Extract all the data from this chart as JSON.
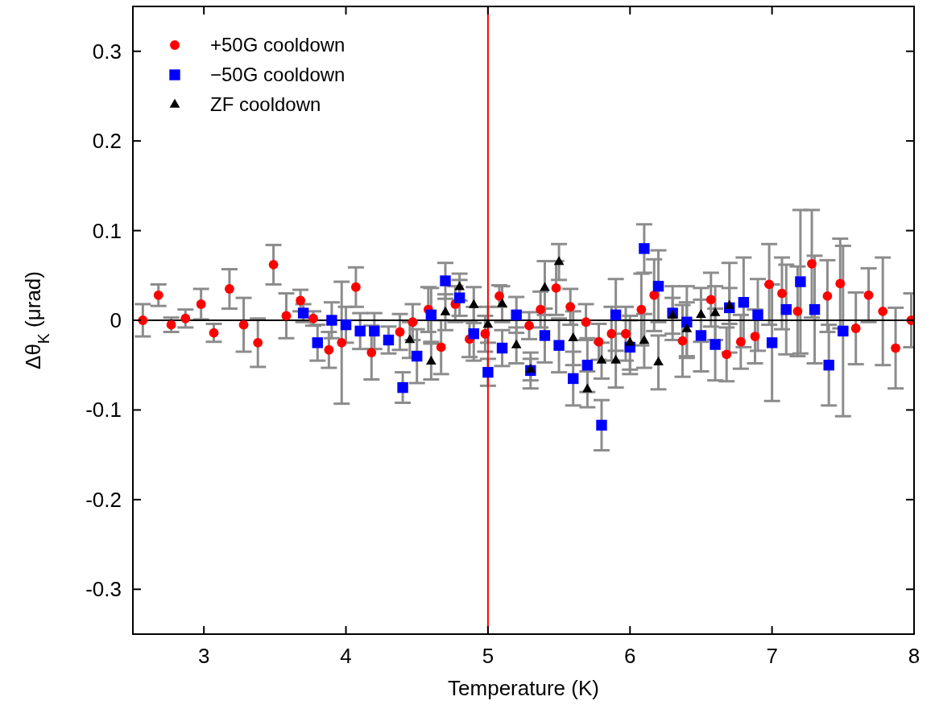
{
  "chart_data": {
    "type": "scatter",
    "xlabel": "Temperature (K)",
    "ylabel": "Δθ$_{K}$ (μrad)",
    "xlim": [
      2.5,
      8
    ],
    "ylim": [
      -0.35,
      0.35
    ],
    "xticks": [
      3,
      4,
      5,
      6,
      7,
      8
    ],
    "yticks": [
      -0.3,
      -0.2,
      -0.1,
      0,
      0.1,
      0.2,
      0.3
    ],
    "grid": false,
    "legend": "top left",
    "ref_lines": [
      {
        "axis": "x",
        "value": 5,
        "color": "#ff0000"
      },
      {
        "axis": "y",
        "value": 0,
        "color": "#000000"
      }
    ],
    "series": [
      {
        "name": "+50G cooldown",
        "color": "#ff0000",
        "marker": "circle",
        "x": [
          2.57,
          2.68,
          2.77,
          2.87,
          2.98,
          3.07,
          3.18,
          3.28,
          3.38,
          3.49,
          3.58,
          3.68,
          3.77,
          3.88,
          3.97,
          4.07,
          4.18,
          4.38,
          4.47,
          4.58,
          4.67,
          4.77,
          4.87,
          4.98,
          5.08,
          5.29,
          5.37,
          5.48,
          5.58,
          5.69,
          5.78,
          5.87,
          5.97,
          6.08,
          6.17,
          6.37,
          6.57,
          6.68,
          6.78,
          6.88,
          6.98,
          7.07,
          7.18,
          7.28,
          7.39,
          7.48,
          7.59,
          7.68,
          7.78,
          7.87,
          7.98
        ],
        "values": [
          0,
          0.028,
          -0.005,
          0.002,
          0.018,
          -0.014,
          0.035,
          -0.005,
          -0.025,
          0.062,
          0.005,
          0.022,
          0.002,
          -0.033,
          -0.025,
          0.037,
          -0.036,
          -0.013,
          -0.002,
          0.012,
          -0.03,
          0.018,
          -0.021,
          -0.015,
          0.027,
          -0.006,
          0.012,
          0.036,
          0.015,
          -0.002,
          -0.024,
          -0.015,
          -0.015,
          0.012,
          0.028,
          -0.023,
          0.023,
          -0.038,
          -0.024,
          -0.018,
          0.04,
          0.03,
          0.01,
          0.063,
          0.027,
          0.041,
          -0.009,
          0.028,
          0.01,
          -0.031,
          0
        ],
        "errors": [
          0.018,
          0.012,
          0.008,
          0.01,
          0.017,
          0.01,
          0.022,
          0.03,
          0.027,
          0.022,
          0.025,
          0.012,
          0.008,
          0.02,
          0.068,
          0.022,
          0.03,
          0.02,
          0.02,
          0.025,
          0.03,
          0.02,
          0.02,
          0.02,
          0.012,
          0.015,
          0.02,
          0.03,
          0.02,
          0.02,
          0.02,
          0.03,
          0.03,
          0.04,
          0.04,
          0.04,
          0.03,
          0.03,
          0.03,
          0.03,
          0.045,
          0.04,
          0.05,
          0.06,
          0.04,
          0.05,
          0.04,
          0.03,
          0.06,
          0.045,
          0.03
        ]
      },
      {
        "name": "−50G cooldown",
        "color": "#0000ff",
        "marker": "square",
        "x": [
          3.7,
          3.8,
          3.9,
          4.0,
          4.1,
          4.2,
          4.3,
          4.4,
          4.5,
          4.6,
          4.7,
          4.8,
          4.9,
          5.0,
          5.1,
          5.2,
          5.3,
          5.4,
          5.5,
          5.6,
          5.7,
          5.8,
          5.9,
          6.0,
          6.1,
          6.2,
          6.3,
          6.4,
          6.5,
          6.6,
          6.7,
          6.8,
          6.9,
          7.0,
          7.1,
          7.2,
          7.3,
          7.4,
          7.5
        ],
        "values": [
          0.008,
          -0.025,
          0,
          -0.005,
          -0.012,
          -0.012,
          -0.022,
          -0.075,
          -0.04,
          0.006,
          0.044,
          0.025,
          -0.015,
          -0.058,
          -0.031,
          0.006,
          -0.056,
          -0.017,
          -0.028,
          -0.065,
          -0.05,
          -0.117,
          0.006,
          -0.03,
          0.08,
          0.038,
          0.008,
          -0.002,
          -0.017,
          -0.027,
          0.014,
          0.02,
          0.006,
          -0.025,
          0.012,
          0.043,
          0.012,
          -0.05,
          -0.012
        ],
        "errors": [
          0.01,
          0.02,
          0.02,
          0.02,
          0.02,
          0.02,
          0.015,
          0.017,
          0.03,
          0.03,
          0.02,
          0.02,
          0.03,
          0.015,
          0.02,
          0.02,
          0.02,
          0.03,
          0.03,
          0.03,
          0.03,
          0.028,
          0.04,
          0.03,
          0.027,
          0.04,
          0.03,
          0.04,
          0.04,
          0.04,
          0.05,
          0.05,
          0.04,
          0.065,
          0.05,
          0.08,
          0.06,
          0.045,
          0.095
        ]
      },
      {
        "name": "ZF cooldown",
        "color": "#000000",
        "marker": "triangle",
        "x": [
          4.45,
          4.6,
          4.7,
          4.8,
          4.9,
          5.0,
          5.1,
          5.2,
          5.3,
          5.4,
          5.5,
          5.6,
          5.7,
          5.8,
          5.9,
          6.0,
          6.1,
          6.2,
          6.3,
          6.4,
          6.5,
          6.6,
          6.7
        ],
        "values": [
          -0.022,
          -0.046,
          0.009,
          0.037,
          0.017,
          -0.005,
          0.018,
          -0.028,
          -0.055,
          0.036,
          0.065,
          -0.02,
          -0.077,
          -0.045,
          -0.045,
          -0.025,
          -0.023,
          -0.047,
          0.005,
          -0.01,
          0.006,
          0.008,
          0.016
        ],
        "errors": [
          0.02,
          0.02,
          0.02,
          0.015,
          0.02,
          0.02,
          0.02,
          0.02,
          0.012,
          0.03,
          0.02,
          0.03,
          0.02,
          0.02,
          0.03,
          0.03,
          0.03,
          0.03,
          0.02,
          0.03,
          0.03,
          0.03,
          0.02
        ]
      }
    ]
  }
}
